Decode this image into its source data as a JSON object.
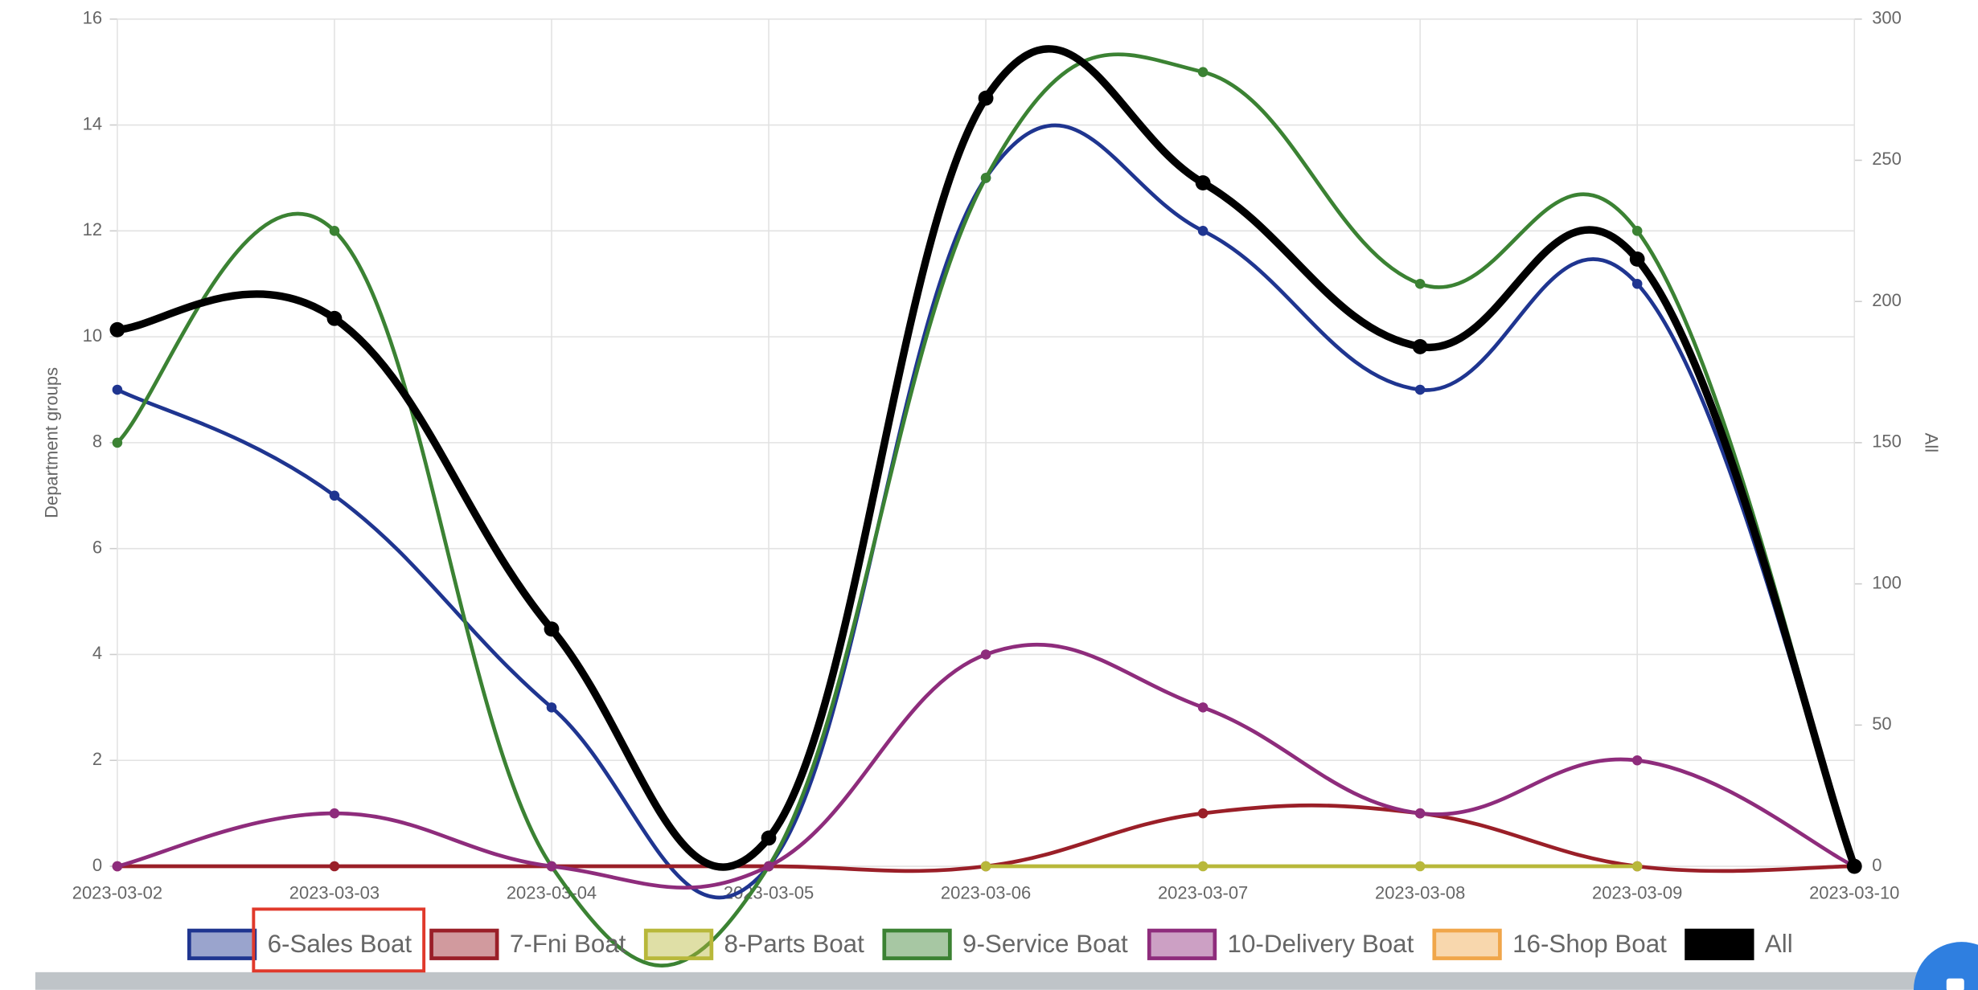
{
  "chart_data": {
    "type": "line",
    "categories": [
      "2023-03-02",
      "2023-03-03",
      "2023-03-04",
      "2023-03-05",
      "2023-03-06",
      "2023-03-07",
      "2023-03-08",
      "2023-03-09",
      "2023-03-10"
    ],
    "ylabel": "Department groups",
    "y2label": "All",
    "ylim": [
      0,
      16
    ],
    "yticks": [
      0,
      2,
      4,
      6,
      8,
      10,
      12,
      14,
      16
    ],
    "y2lim": [
      0,
      300
    ],
    "y2ticks": [
      0,
      50,
      100,
      150,
      200,
      250,
      300
    ],
    "grid": true,
    "legend": "bottom",
    "series": [
      {
        "name": "6-Sales Boat",
        "color": "#1f3590",
        "values": [
          9,
          7,
          3,
          0,
          13,
          12,
          9,
          11,
          0
        ]
      },
      {
        "name": "7-Fni Boat",
        "color": "#9a1f28",
        "values": [
          0,
          0,
          0,
          0,
          0,
          1,
          1,
          0,
          0
        ]
      },
      {
        "name": "8-Parts Boat",
        "color": "#b8b83a",
        "values": [
          null,
          null,
          null,
          null,
          0,
          0,
          0,
          0,
          null
        ]
      },
      {
        "name": "9-Service Boat",
        "color": "#3b8233",
        "values": [
          8,
          12,
          0,
          0,
          13,
          15,
          11,
          12,
          0
        ]
      },
      {
        "name": "10-Delivery Boat",
        "color": "#8e2c7c",
        "values": [
          0,
          1,
          0,
          0,
          4,
          3,
          1,
          2,
          0
        ]
      },
      {
        "name": "16-Shop Boat",
        "color": "#f0a64a",
        "values": [
          null,
          null,
          null,
          null,
          null,
          null,
          null,
          null,
          null
        ]
      },
      {
        "name": "All",
        "color": "#000000",
        "axis": "y2",
        "values": [
          190,
          194,
          84,
          10,
          272,
          242,
          184,
          215,
          0
        ]
      }
    ]
  }
}
